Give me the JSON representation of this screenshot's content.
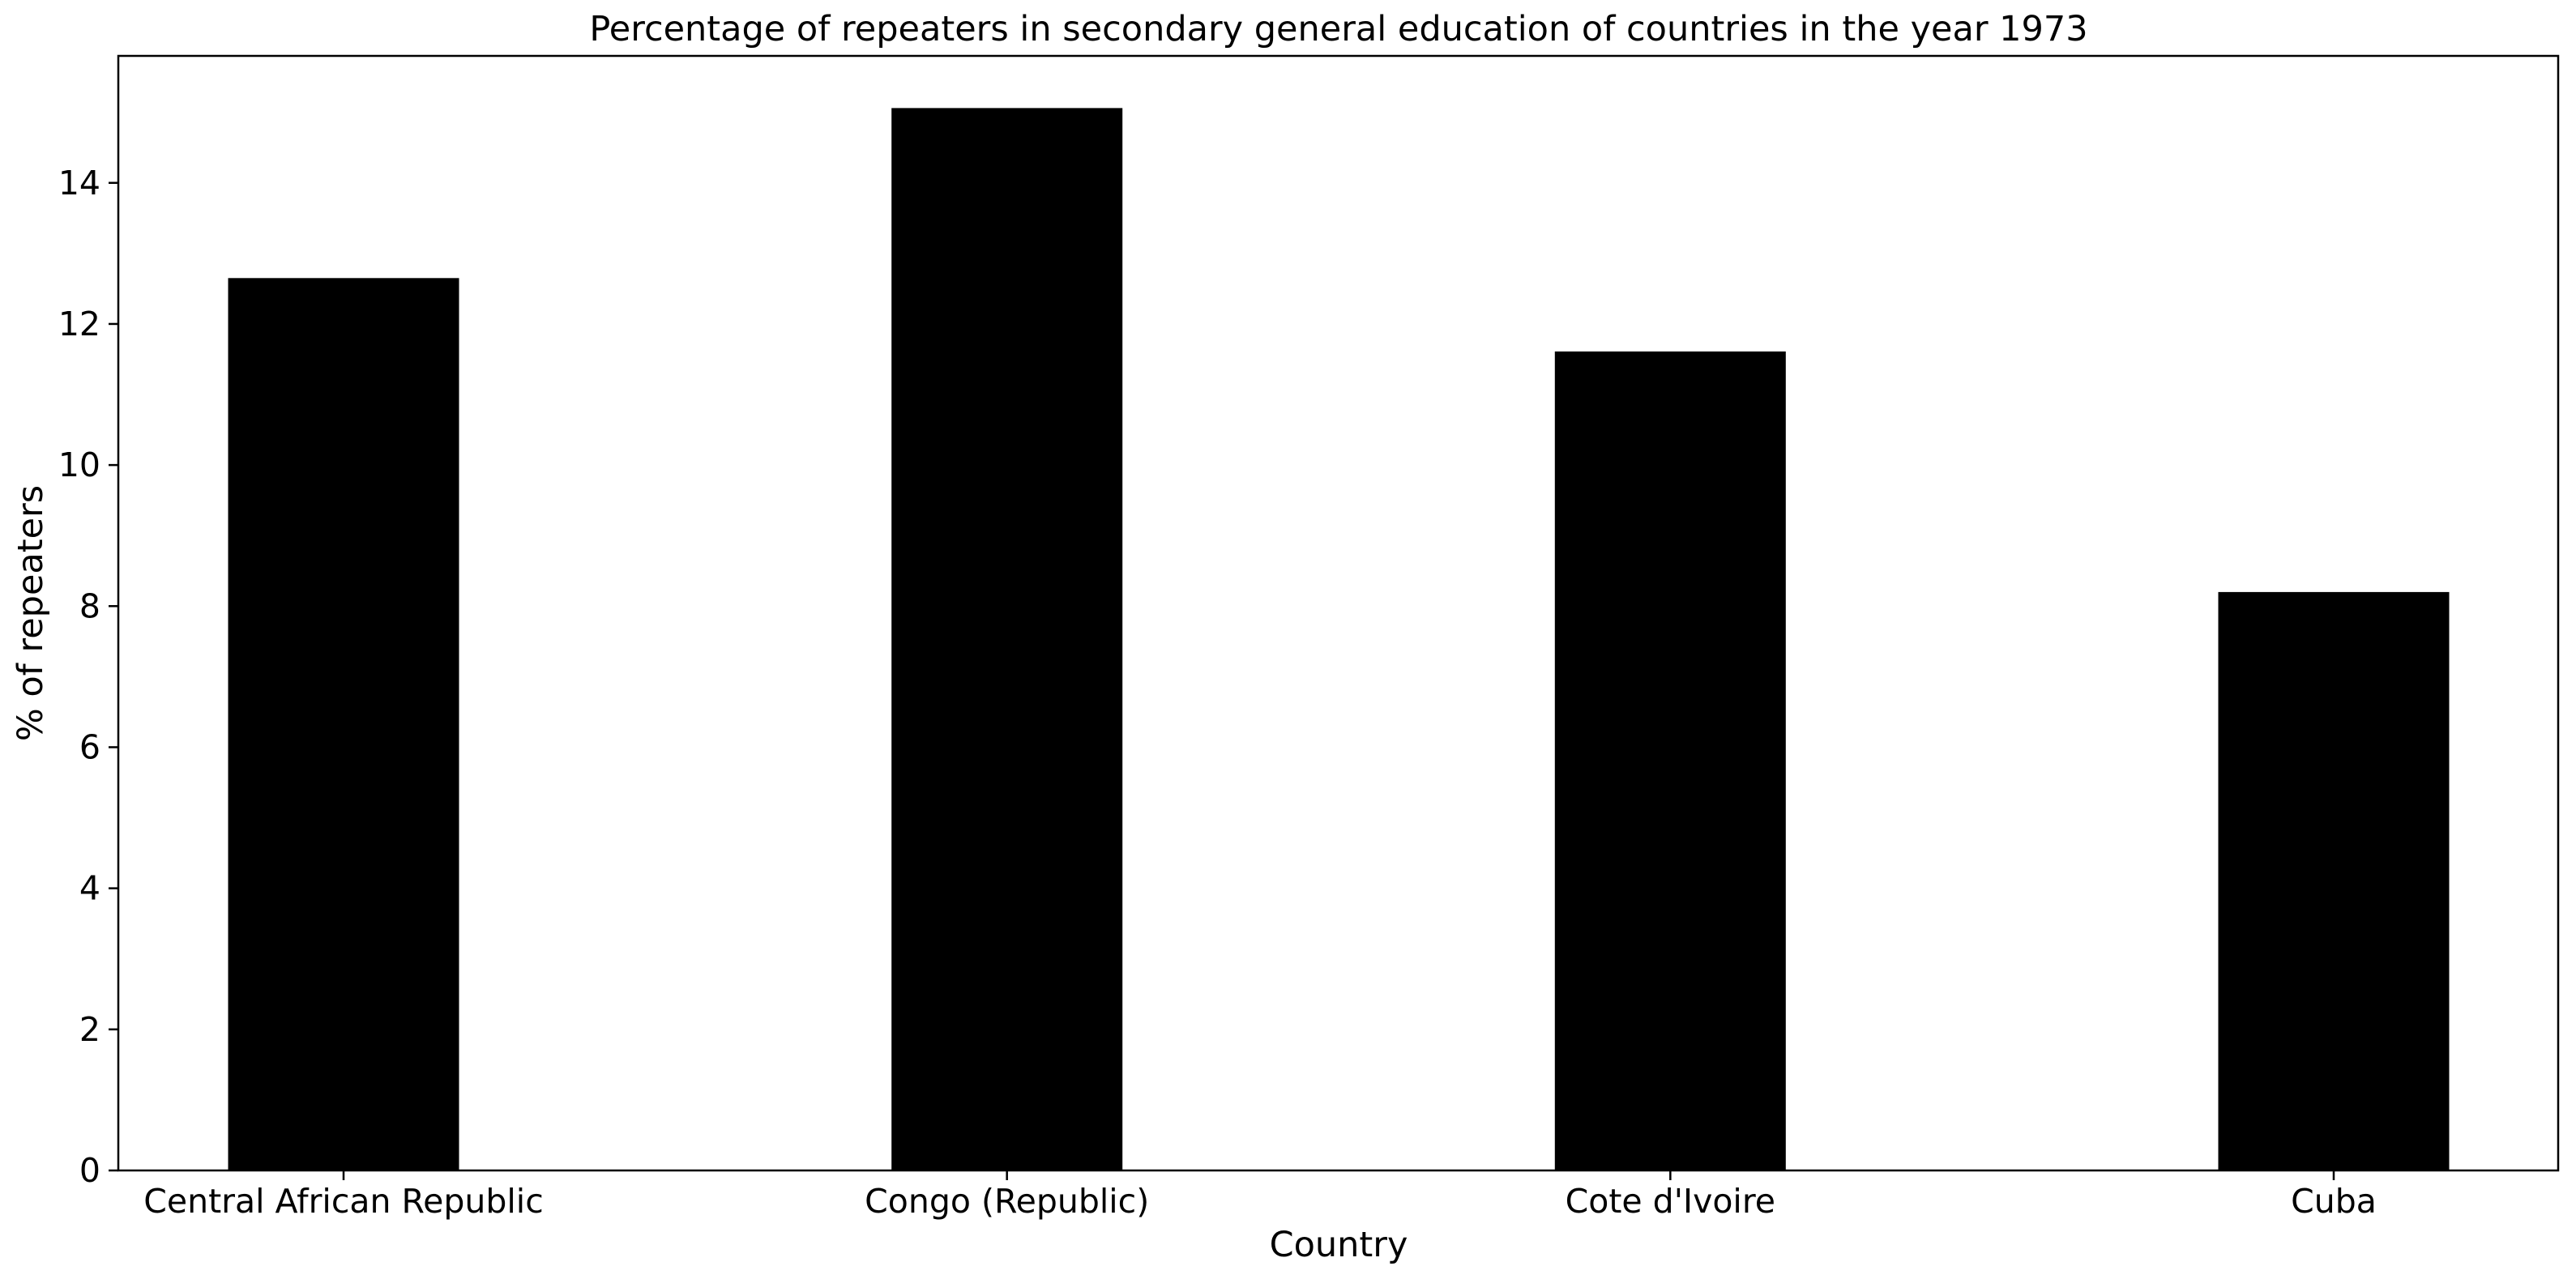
{
  "chart_data": {
    "type": "bar",
    "title": "Percentage of repeaters in secondary general education of countries in the year 1973",
    "xlabel": "Country",
    "ylabel": "% of repeaters",
    "categories": [
      "Central African Republic",
      "Congo (Republic)",
      "Cote d'Ivoire",
      "Cuba"
    ],
    "values": [
      12.65,
      15.06,
      11.61,
      8.2
    ],
    "ylim": [
      0,
      15.8
    ],
    "yticks": [
      0,
      2,
      4,
      6,
      8,
      10,
      12,
      14
    ],
    "bar_color": "#000000",
    "grid": false,
    "legend": "none"
  }
}
